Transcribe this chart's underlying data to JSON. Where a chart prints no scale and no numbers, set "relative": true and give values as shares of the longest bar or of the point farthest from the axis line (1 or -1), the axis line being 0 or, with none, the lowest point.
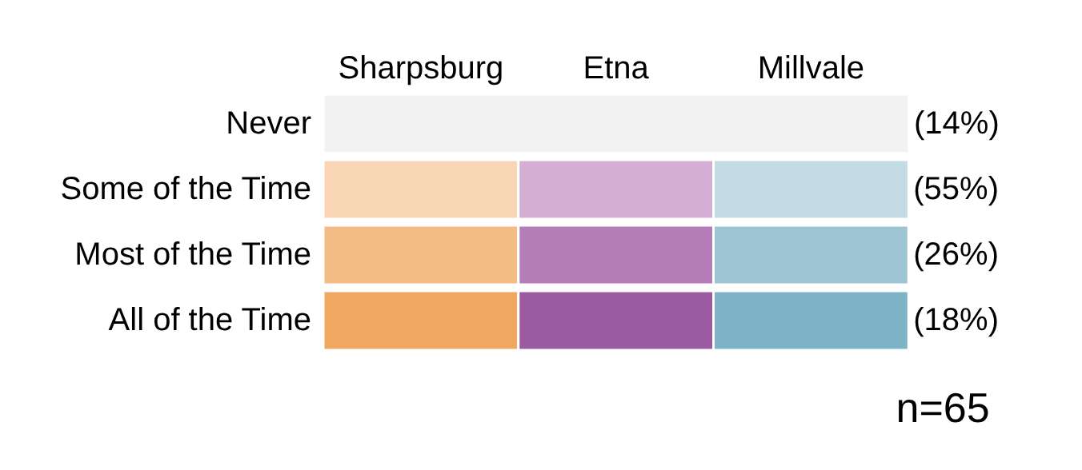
{
  "chart_data": {
    "type": "bar",
    "orientation": "horizontal",
    "stacked": true,
    "relative": true,
    "categories": [
      "Never",
      "Some of the Time",
      "Most of the Time",
      "All of the Time"
    ],
    "series": [
      {
        "color": "#f2f2f2",
        "values": [
          1,
          null,
          null,
          null
        ]
      },
      {
        "name": "Sharpsburg",
        "colors": [
          null,
          "#f8d5b5",
          "#f3bb86",
          "#f0a860"
        ],
        "values": [
          null,
          0.333,
          0.333,
          0.333
        ]
      },
      {
        "name": "Etna",
        "colors": [
          null,
          "#d4aed4",
          "#b47db7",
          "#9c5aa0"
        ],
        "values": [
          null,
          0.333,
          0.333,
          0.333
        ]
      },
      {
        "name": "Millvale",
        "colors": [
          null,
          "#c3dbe3",
          "#9cc4d3",
          "#7eb2c6"
        ],
        "values": [
          null,
          0.333,
          0.333,
          0.333
        ]
      }
    ],
    "legend": "top",
    "annotations": [
      "(14%)",
      "(55%)",
      "(26%)",
      "(18%)",
      "n=65"
    ]
  }
}
